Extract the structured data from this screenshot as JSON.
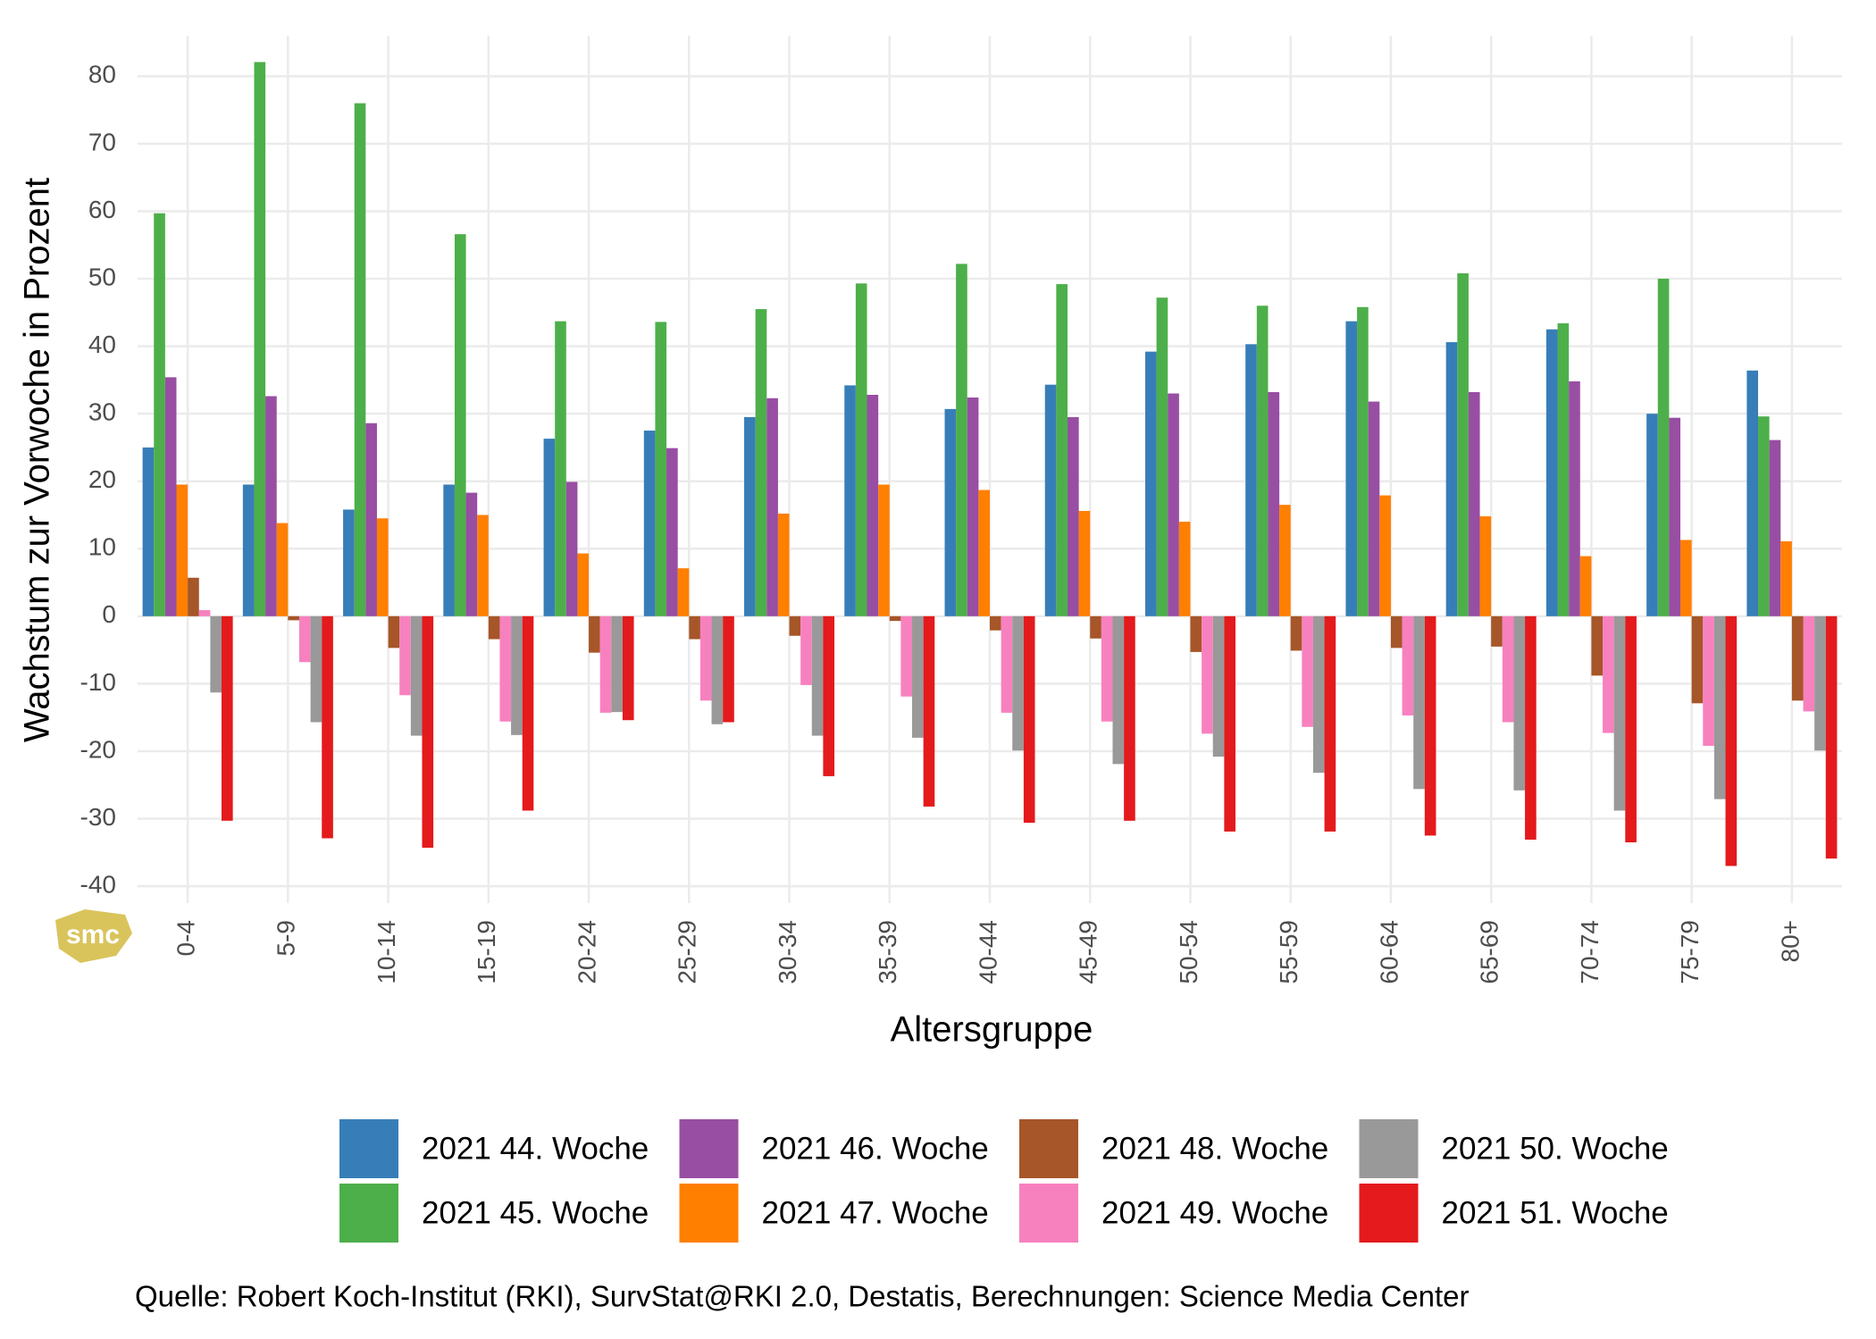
{
  "chart_data": {
    "type": "bar",
    "x_label": "Altersgruppe",
    "y_label": "Wachstum zur Vorwoche in Prozent",
    "caption": "Quelle: Robert Koch-Institut (RKI), SurvStat@RKI 2.0, Destatis, Berechnungen: Science Media Center",
    "logo": "smc",
    "categories": [
      "0-4",
      "5-9",
      "10-14",
      "15-19",
      "20-24",
      "25-29",
      "30-34",
      "35-39",
      "40-44",
      "45-49",
      "50-54",
      "55-59",
      "60-64",
      "65-69",
      "70-74",
      "75-79",
      "80+"
    ],
    "ylim": [
      -42.5,
      86
    ],
    "yticks": [
      -40,
      -30,
      -20,
      -10,
      0,
      10,
      20,
      30,
      40,
      50,
      60,
      70,
      80
    ],
    "grid": true,
    "legend_position": "bottom",
    "series": [
      {
        "name": "2021 44. Woche",
        "color": "#377eb8",
        "values": [
          25,
          19.5,
          15.8,
          19.5,
          26.3,
          27.5,
          29.5,
          34.2,
          30.7,
          34.3,
          39.2,
          40.3,
          43.7,
          40.6,
          42.5,
          30,
          36.4
        ]
      },
      {
        "name": "2021 45. Woche",
        "color": "#4daf4a",
        "values": [
          59.7,
          82.1,
          76,
          56.6,
          43.7,
          43.6,
          45.5,
          49.3,
          52.2,
          49.2,
          47.2,
          46,
          45.8,
          50.8,
          43.4,
          50,
          29.6
        ]
      },
      {
        "name": "2021 46. Woche",
        "color": "#984ea3",
        "values": [
          35.4,
          32.6,
          28.6,
          18.3,
          19.9,
          24.9,
          32.3,
          32.8,
          32.4,
          29.5,
          33,
          33.2,
          31.8,
          33.2,
          34.8,
          29.4,
          26.1
        ]
      },
      {
        "name": "2021 47. Woche",
        "color": "#ff7f00",
        "values": [
          19.5,
          13.8,
          14.5,
          15,
          9.3,
          7.1,
          15.2,
          19.5,
          18.7,
          15.6,
          14,
          16.5,
          17.9,
          14.8,
          8.9,
          11.3,
          11.1
        ]
      },
      {
        "name": "2021 48. Woche",
        "color": "#a65628",
        "values": [
          5.7,
          -0.6,
          -4.7,
          -3.4,
          -5.4,
          -3.4,
          -2.9,
          -0.7,
          -2.1,
          -3.3,
          -5.3,
          -5.1,
          -4.7,
          -4.5,
          -8.8,
          -12.9,
          -12.5
        ]
      },
      {
        "name": "2021 49. Woche",
        "color": "#f781bf",
        "values": [
          0.9,
          -6.8,
          -11.7,
          -15.6,
          -14.3,
          -12.5,
          -10.2,
          -11.9,
          -14.3,
          -15.6,
          -17.4,
          -16.4,
          -14.7,
          -15.7,
          -17.3,
          -19.2,
          -14.1
        ]
      },
      {
        "name": "2021 50. Woche",
        "color": "#999999",
        "values": [
          -11.3,
          -15.7,
          -17.7,
          -17.6,
          -14.2,
          -16,
          -17.7,
          -18,
          -19.9,
          -21.9,
          -20.8,
          -23.2,
          -25.6,
          -25.8,
          -28.8,
          -27.1,
          -19.9
        ]
      },
      {
        "name": "2021 51. Woche",
        "color": "#e41a1c",
        "values": [
          -30.3,
          -32.9,
          -34.3,
          -28.8,
          -15.4,
          -15.7,
          -23.7,
          -28.2,
          -30.6,
          -30.3,
          -31.9,
          -31.9,
          -32.5,
          -33.1,
          -33.5,
          -37,
          -35.9
        ]
      }
    ]
  }
}
